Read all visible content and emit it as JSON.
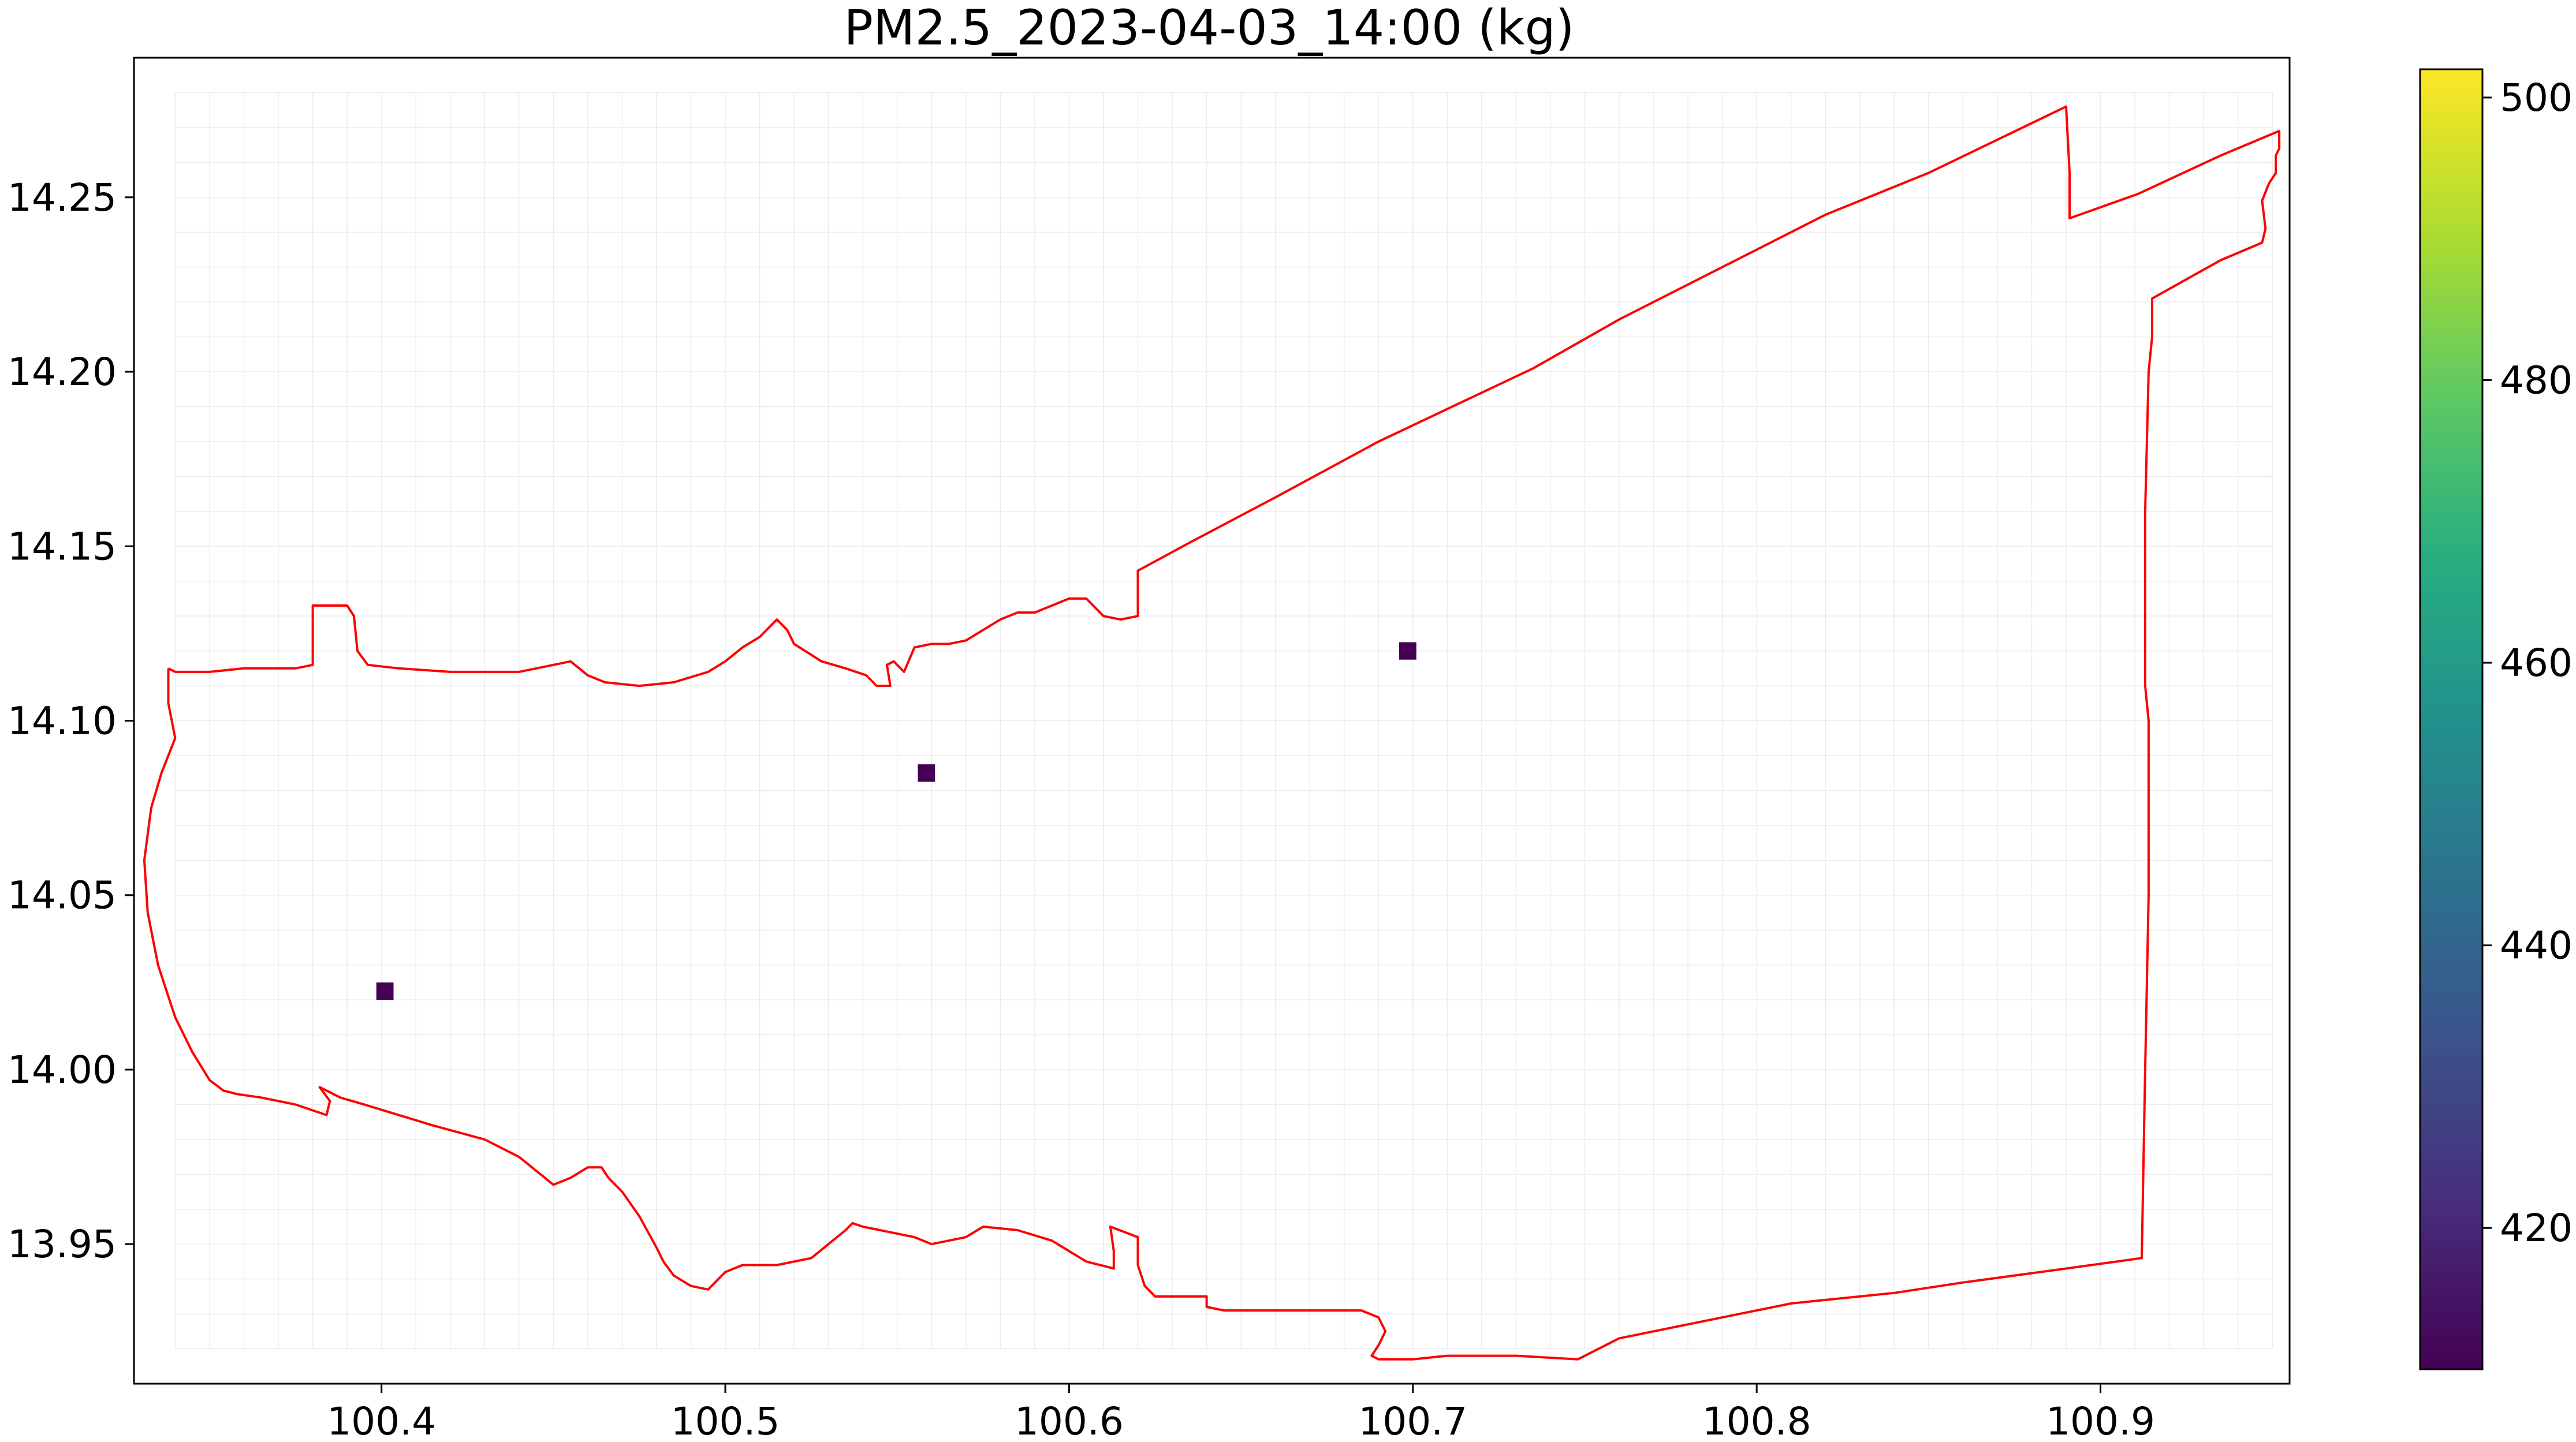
{
  "title": "PM2.5_2023-04-03_14:00 (kg)",
  "chart_data": {
    "type": "heatmap",
    "title": "PM2.5_2023-04-03_14:00 (kg)",
    "xlabel": "",
    "ylabel": "",
    "xlim": [
      100.328,
      100.955
    ],
    "ylim": [
      13.91,
      14.29
    ],
    "x_ticks": [
      "100.4",
      "100.5",
      "100.6",
      "100.7",
      "100.8",
      "100.9"
    ],
    "y_ticks": [
      "13.95",
      "14.00",
      "14.05",
      "14.10",
      "14.15",
      "14.20",
      "14.25"
    ],
    "grid": true,
    "grid_cell_size": 0.01,
    "colorbar": {
      "colormap": "viridis",
      "range": [
        410,
        502
      ],
      "ticks": [
        "420",
        "440",
        "460",
        "480",
        "500"
      ]
    },
    "cells": [
      {
        "lon": 100.401,
        "lat": 14.0225,
        "value": 410
      },
      {
        "lon": 100.5585,
        "lat": 14.085,
        "value": 410
      },
      {
        "lon": 100.6985,
        "lat": 14.12,
        "value": 410
      }
    ],
    "boundary_color": "#ff0000",
    "boundary": [
      [
        100.338,
        14.115
      ],
      [
        100.34,
        14.114
      ],
      [
        100.35,
        14.114
      ],
      [
        100.36,
        14.115
      ],
      [
        100.375,
        14.115
      ],
      [
        100.38,
        14.116
      ],
      [
        100.38,
        14.133
      ],
      [
        100.39,
        14.133
      ],
      [
        100.392,
        14.13
      ],
      [
        100.393,
        14.12
      ],
      [
        100.396,
        14.116
      ],
      [
        100.405,
        14.115
      ],
      [
        100.42,
        14.114
      ],
      [
        100.44,
        14.114
      ],
      [
        100.45,
        14.116
      ],
      [
        100.455,
        14.117
      ],
      [
        100.46,
        14.113
      ],
      [
        100.465,
        14.111
      ],
      [
        100.475,
        14.11
      ],
      [
        100.485,
        14.111
      ],
      [
        100.495,
        14.114
      ],
      [
        100.5,
        14.117
      ],
      [
        100.505,
        14.121
      ],
      [
        100.51,
        14.124
      ],
      [
        100.515,
        14.129
      ],
      [
        100.518,
        14.126
      ],
      [
        100.52,
        14.122
      ],
      [
        100.528,
        14.117
      ],
      [
        100.535,
        14.115
      ],
      [
        100.541,
        14.113
      ],
      [
        100.544,
        14.11
      ],
      [
        100.548,
        14.11
      ],
      [
        100.547,
        14.116
      ],
      [
        100.549,
        14.117
      ],
      [
        100.552,
        14.114
      ],
      [
        100.555,
        14.121
      ],
      [
        100.56,
        14.122
      ],
      [
        100.565,
        14.122
      ],
      [
        100.57,
        14.123
      ],
      [
        100.575,
        14.126
      ],
      [
        100.58,
        14.129
      ],
      [
        100.585,
        14.131
      ],
      [
        100.59,
        14.131
      ],
      [
        100.595,
        14.133
      ],
      [
        100.6,
        14.135
      ],
      [
        100.605,
        14.135
      ],
      [
        100.61,
        14.13
      ],
      [
        100.615,
        14.129
      ],
      [
        100.62,
        14.13
      ],
      [
        100.62,
        14.143
      ],
      [
        100.635,
        14.151
      ],
      [
        100.66,
        14.164
      ],
      [
        100.69,
        14.18
      ],
      [
        100.72,
        14.194
      ],
      [
        100.735,
        14.201
      ],
      [
        100.76,
        14.215
      ],
      [
        100.79,
        14.23
      ],
      [
        100.82,
        14.245
      ],
      [
        100.85,
        14.257
      ],
      [
        100.89,
        14.276
      ],
      [
        100.891,
        14.257
      ],
      [
        100.891,
        14.244
      ],
      [
        100.911,
        14.251
      ],
      [
        100.935,
        14.262
      ],
      [
        100.952,
        14.269
      ],
      [
        100.952,
        14.264
      ],
      [
        100.951,
        14.262
      ],
      [
        100.951,
        14.257
      ],
      [
        100.949,
        14.254
      ],
      [
        100.947,
        14.249
      ],
      [
        100.948,
        14.241
      ],
      [
        100.947,
        14.237
      ],
      [
        100.935,
        14.232
      ],
      [
        100.915,
        14.221
      ],
      [
        100.915,
        14.21
      ],
      [
        100.914,
        14.2
      ],
      [
        100.913,
        14.16
      ],
      [
        100.913,
        14.11
      ],
      [
        100.914,
        14.1
      ],
      [
        100.914,
        14.05
      ],
      [
        100.913,
        14.0
      ],
      [
        100.912,
        13.946
      ],
      [
        100.89,
        13.943
      ],
      [
        100.86,
        13.939
      ],
      [
        100.84,
        13.936
      ],
      [
        100.82,
        13.934
      ],
      [
        100.81,
        13.933
      ],
      [
        100.8,
        13.931
      ],
      [
        100.78,
        13.927
      ],
      [
        100.76,
        13.923
      ],
      [
        100.748,
        13.917
      ],
      [
        100.73,
        13.918
      ],
      [
        100.71,
        13.918
      ],
      [
        100.7,
        13.917
      ],
      [
        100.69,
        13.917
      ],
      [
        100.688,
        13.918
      ],
      [
        100.69,
        13.921
      ],
      [
        100.692,
        13.925
      ],
      [
        100.69,
        13.929
      ],
      [
        100.685,
        13.931
      ],
      [
        100.67,
        13.931
      ],
      [
        100.645,
        13.931
      ],
      [
        100.64,
        13.932
      ],
      [
        100.64,
        13.935
      ],
      [
        100.632,
        13.935
      ],
      [
        100.625,
        13.935
      ],
      [
        100.622,
        13.938
      ],
      [
        100.62,
        13.944
      ],
      [
        100.62,
        13.952
      ],
      [
        100.612,
        13.955
      ],
      [
        100.613,
        13.948
      ],
      [
        100.613,
        13.943
      ],
      [
        100.605,
        13.945
      ],
      [
        100.595,
        13.951
      ],
      [
        100.585,
        13.954
      ],
      [
        100.575,
        13.955
      ],
      [
        100.57,
        13.952
      ],
      [
        100.565,
        13.951
      ],
      [
        100.56,
        13.95
      ],
      [
        100.555,
        13.952
      ],
      [
        100.55,
        13.953
      ],
      [
        100.545,
        13.954
      ],
      [
        100.54,
        13.955
      ],
      [
        100.537,
        13.956
      ],
      [
        100.535,
        13.954
      ],
      [
        100.53,
        13.95
      ],
      [
        100.525,
        13.946
      ],
      [
        100.515,
        13.944
      ],
      [
        100.505,
        13.944
      ],
      [
        100.5,
        13.942
      ],
      [
        100.495,
        13.937
      ],
      [
        100.49,
        13.938
      ],
      [
        100.485,
        13.941
      ],
      [
        100.482,
        13.945
      ],
      [
        100.48,
        13.949
      ],
      [
        100.475,
        13.958
      ],
      [
        100.47,
        13.965
      ],
      [
        100.466,
        13.969
      ],
      [
        100.464,
        13.972
      ],
      [
        100.46,
        13.972
      ],
      [
        100.455,
        13.969
      ],
      [
        100.45,
        13.967
      ],
      [
        100.44,
        13.975
      ],
      [
        100.43,
        13.98
      ],
      [
        100.415,
        13.984
      ],
      [
        100.405,
        13.987
      ],
      [
        100.395,
        13.99
      ],
      [
        100.388,
        13.992
      ],
      [
        100.382,
        13.995
      ],
      [
        100.385,
        13.991
      ],
      [
        100.384,
        13.987
      ],
      [
        100.375,
        13.99
      ],
      [
        100.365,
        13.992
      ],
      [
        100.358,
        13.993
      ],
      [
        100.354,
        13.994
      ],
      [
        100.35,
        13.997
      ],
      [
        100.345,
        14.005
      ],
      [
        100.34,
        14.015
      ],
      [
        100.335,
        14.03
      ],
      [
        100.332,
        14.045
      ],
      [
        100.331,
        14.06
      ],
      [
        100.333,
        14.075
      ],
      [
        100.336,
        14.085
      ],
      [
        100.34,
        14.095
      ],
      [
        100.338,
        14.105
      ],
      [
        100.338,
        14.115
      ]
    ]
  }
}
